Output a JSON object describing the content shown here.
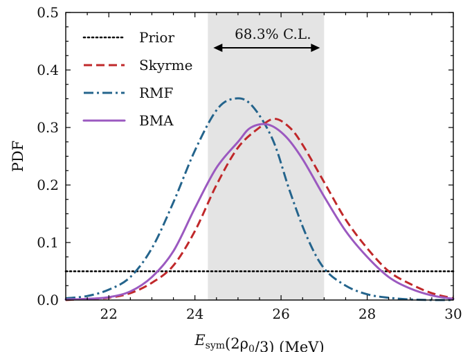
{
  "chart_data": {
    "type": "line",
    "xlabel": "E_sym(2ρ0/3) (MeV)",
    "xlabel_parts": {
      "main": "E",
      "sub": "sym",
      "rest": "(2ρ",
      "sub2": "0",
      "tail": "/3) (MeV)"
    },
    "ylabel": "PDF",
    "xlim": [
      21,
      30
    ],
    "ylim": [
      0,
      0.5
    ],
    "x_ticks": [
      22,
      24,
      26,
      28,
      30
    ],
    "y_ticks": [
      0.0,
      0.1,
      0.2,
      0.3,
      0.4,
      0.5
    ],
    "x_tick_labels": [
      "22",
      "24",
      "26",
      "28",
      "30"
    ],
    "y_tick_labels": [
      "0.0",
      "0.1",
      "0.2",
      "0.3",
      "0.4",
      "0.5"
    ],
    "grid": false,
    "legend_position": "top-left",
    "band": {
      "label": "68.3% C.L.",
      "x_range": [
        24.3,
        27.0
      ],
      "color": "#e4e4e4"
    },
    "series": [
      {
        "name": "Prior",
        "style": "dotted",
        "color": "#000000",
        "x": [
          21,
          30
        ],
        "y": [
          0.05,
          0.05
        ]
      },
      {
        "name": "Skyrme",
        "style": "dashed",
        "color": "#c0282a",
        "x": [
          21.0,
          21.5,
          22.0,
          22.5,
          23.0,
          23.5,
          24.0,
          24.5,
          25.0,
          25.5,
          25.85,
          26.2,
          26.5,
          27.0,
          27.5,
          28.0,
          28.5,
          29.0,
          29.5,
          30.0
        ],
        "y": [
          0.0,
          0.002,
          0.004,
          0.012,
          0.03,
          0.06,
          0.12,
          0.2,
          0.265,
          0.3,
          0.315,
          0.3,
          0.27,
          0.205,
          0.14,
          0.09,
          0.05,
          0.028,
          0.012,
          0.003
        ]
      },
      {
        "name": "RMF",
        "style": "dashdot",
        "color": "#24648c",
        "x": [
          21.0,
          21.5,
          22.0,
          22.5,
          23.0,
          23.5,
          24.0,
          24.5,
          24.9,
          25.3,
          25.8,
          26.2,
          26.6,
          27.0,
          27.5,
          28.0,
          28.5,
          29.0,
          29.5,
          30.0
        ],
        "y": [
          0.003,
          0.007,
          0.018,
          0.04,
          0.09,
          0.17,
          0.26,
          0.33,
          0.35,
          0.34,
          0.28,
          0.19,
          0.11,
          0.055,
          0.025,
          0.01,
          0.004,
          0.001,
          0.0,
          0.0
        ]
      },
      {
        "name": "BMA",
        "style": "solid",
        "color": "#9b59c0",
        "x": [
          21.0,
          21.5,
          22.0,
          22.5,
          23.0,
          23.5,
          24.0,
          24.5,
          25.0,
          25.3,
          25.7,
          26.1,
          26.5,
          27.0,
          27.5,
          28.0,
          28.5,
          29.0,
          29.5,
          30.0
        ],
        "y": [
          0.001,
          0.002,
          0.005,
          0.015,
          0.04,
          0.085,
          0.16,
          0.23,
          0.275,
          0.3,
          0.305,
          0.285,
          0.245,
          0.18,
          0.12,
          0.075,
          0.04,
          0.02,
          0.008,
          0.002
        ]
      }
    ]
  }
}
